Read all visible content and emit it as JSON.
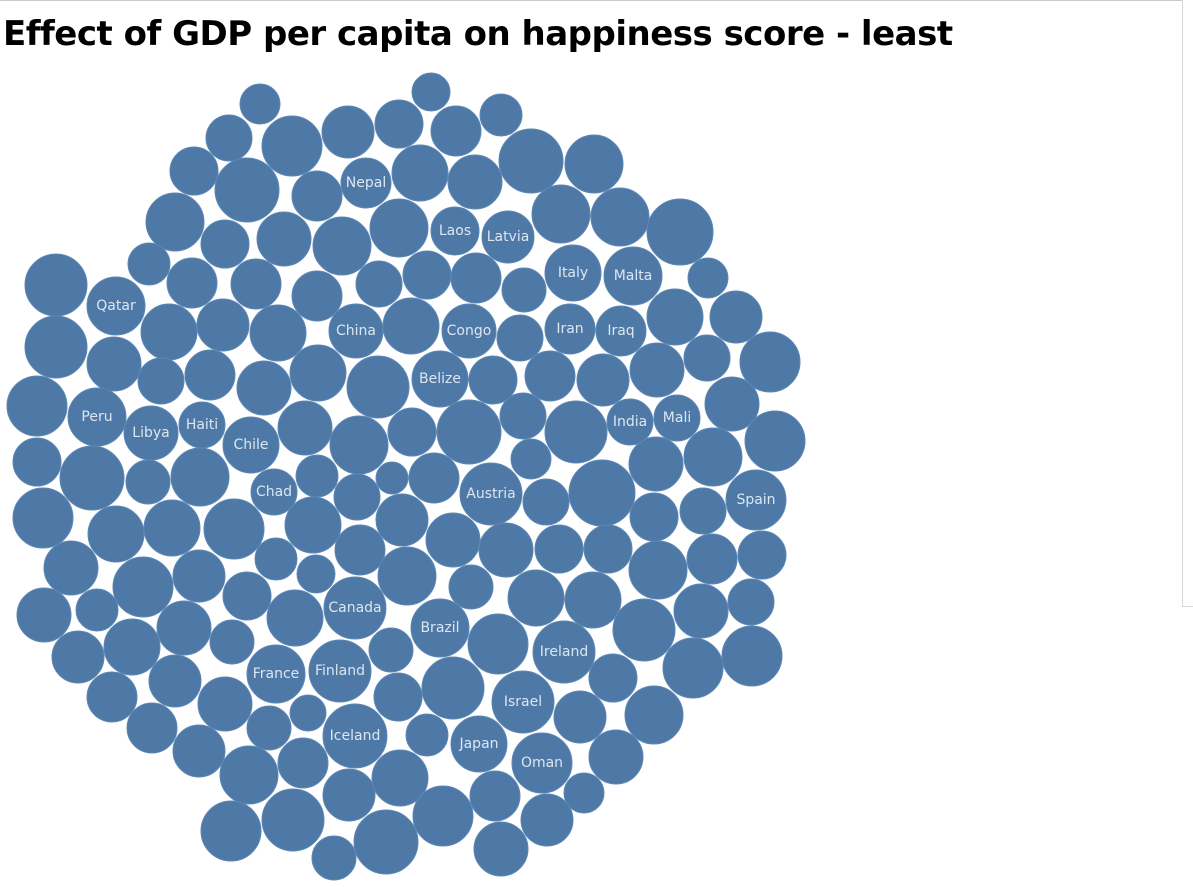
{
  "chart_data": {
    "type": "packed-bubble",
    "title": "Effect of GDP per capita on happiness score - least",
    "mark_color": "#4e79a7",
    "label_color": "#dce6f0",
    "labeled_bubbles": [
      "Nepal",
      "Laos",
      "Latvia",
      "Italy",
      "Malta",
      "Qatar",
      "China",
      "Congo",
      "Iran",
      "Iraq",
      "Belize",
      "Peru",
      "Libya",
      "Haiti",
      "Chile",
      "India",
      "Mali",
      "Chad",
      "Austria",
      "Spain",
      "Canada",
      "Brazil",
      "Ireland",
      "France",
      "Finland",
      "Israel",
      "Iceland",
      "Japan",
      "Oman"
    ],
    "unlabeled_bubble_count": 164
  }
}
